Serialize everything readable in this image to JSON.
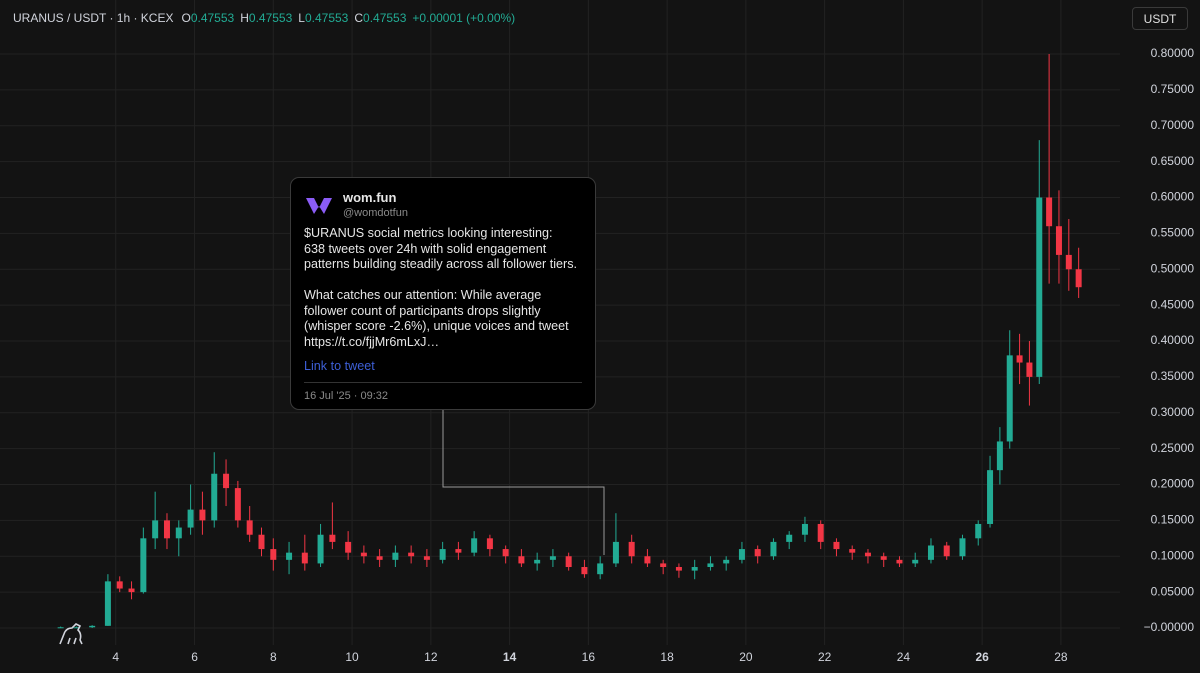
{
  "header": {
    "symbol": "URANUS / USDT · 1h · KCEX",
    "ohlc": [
      {
        "label": "O",
        "value": "0.47553"
      },
      {
        "label": "H",
        "value": "0.47553"
      },
      {
        "label": "L",
        "value": "0.47553"
      },
      {
        "label": "C",
        "value": "0.47553"
      }
    ],
    "change": "+0.00001 (+0.00%)",
    "currency": "USDT"
  },
  "tweet": {
    "name": "wom.fun",
    "handle": "@womdotfun",
    "paragraphs": [
      [
        "$URANUS social metrics looking interesting:",
        "638 tweets over 24h with solid engagement",
        "patterns building steadily across all follower tiers."
      ],
      [
        "What catches our attention: While average",
        "follower count of participants drops slightly",
        "(whisper score -2.6%), unique voices and tweet",
        "https://t.co/fjjMr6mLxJ…"
      ]
    ],
    "link": "Link to tweet",
    "date": "16 Jul '25 · 09:32"
  },
  "chart_data": {
    "type": "candlestick",
    "up_color": "#22ab94",
    "down_color": "#f23645",
    "grid": true,
    "xlim": [
      1.06,
      29.5
    ],
    "xticks": [
      4,
      6,
      8,
      10,
      12,
      14,
      16,
      18,
      20,
      22,
      24,
      26,
      28
    ],
    "ylim": [
      -0.0237,
      0.8753
    ],
    "yticks": [
      {
        "value": 0,
        "label": "−0.00000"
      },
      {
        "value": 0.05,
        "label": "0.05000"
      },
      {
        "value": 0.1,
        "label": "0.10000"
      },
      {
        "value": 0.15,
        "label": "0.15000"
      },
      {
        "value": 0.2,
        "label": "0.20000"
      },
      {
        "value": 0.25,
        "label": "0.25000"
      },
      {
        "value": 0.3,
        "label": "0.30000"
      },
      {
        "value": 0.35,
        "label": "0.35000"
      },
      {
        "value": 0.4,
        "label": "0.40000"
      },
      {
        "value": 0.45,
        "label": "0.45000"
      },
      {
        "value": 0.5,
        "label": "0.50000"
      },
      {
        "value": 0.55,
        "label": "0.55000"
      },
      {
        "value": 0.6,
        "label": "0.60000"
      },
      {
        "value": 0.65,
        "label": "0.65000"
      },
      {
        "value": 0.7,
        "label": "0.70000"
      },
      {
        "value": 0.75,
        "label": "0.75000"
      },
      {
        "value": 0.8,
        "label": "0.80000"
      }
    ],
    "candles": [
      {
        "x": 2.6,
        "open": 0.001,
        "high": 0.002,
        "low": 0.0,
        "close": 0.001
      },
      {
        "x": 3.0,
        "open": 0.001,
        "high": 0.002,
        "low": 0.0,
        "close": 0.001
      },
      {
        "x": 3.4,
        "open": 0.001,
        "high": 0.004,
        "low": 0.0,
        "close": 0.003
      },
      {
        "x": 3.8,
        "open": 0.003,
        "high": 0.075,
        "low": 0.003,
        "close": 0.065
      },
      {
        "x": 4.1,
        "open": 0.065,
        "high": 0.072,
        "low": 0.05,
        "close": 0.055
      },
      {
        "x": 4.4,
        "open": 0.055,
        "high": 0.065,
        "low": 0.04,
        "close": 0.05
      },
      {
        "x": 4.7,
        "open": 0.05,
        "high": 0.14,
        "low": 0.048,
        "close": 0.125
      },
      {
        "x": 5.0,
        "open": 0.125,
        "high": 0.19,
        "low": 0.11,
        "close": 0.15
      },
      {
        "x": 5.3,
        "open": 0.15,
        "high": 0.16,
        "low": 0.11,
        "close": 0.125
      },
      {
        "x": 5.6,
        "open": 0.125,
        "high": 0.15,
        "low": 0.1,
        "close": 0.14
      },
      {
        "x": 5.9,
        "open": 0.14,
        "high": 0.2,
        "low": 0.13,
        "close": 0.165
      },
      {
        "x": 6.2,
        "open": 0.165,
        "high": 0.19,
        "low": 0.13,
        "close": 0.15
      },
      {
        "x": 6.5,
        "open": 0.15,
        "high": 0.245,
        "low": 0.14,
        "close": 0.215
      },
      {
        "x": 6.8,
        "open": 0.215,
        "high": 0.235,
        "low": 0.17,
        "close": 0.195
      },
      {
        "x": 7.1,
        "open": 0.195,
        "high": 0.205,
        "low": 0.14,
        "close": 0.15
      },
      {
        "x": 7.4,
        "open": 0.15,
        "high": 0.17,
        "low": 0.12,
        "close": 0.13
      },
      {
        "x": 7.7,
        "open": 0.13,
        "high": 0.14,
        "low": 0.1,
        "close": 0.11
      },
      {
        "x": 8.0,
        "open": 0.11,
        "high": 0.125,
        "low": 0.08,
        "close": 0.095
      },
      {
        "x": 8.4,
        "open": 0.095,
        "high": 0.12,
        "low": 0.075,
        "close": 0.105
      },
      {
        "x": 8.8,
        "open": 0.105,
        "high": 0.13,
        "low": 0.08,
        "close": 0.09
      },
      {
        "x": 9.2,
        "open": 0.09,
        "high": 0.145,
        "low": 0.085,
        "close": 0.13
      },
      {
        "x": 9.5,
        "open": 0.13,
        "high": 0.175,
        "low": 0.11,
        "close": 0.12
      },
      {
        "x": 9.9,
        "open": 0.12,
        "high": 0.135,
        "low": 0.095,
        "close": 0.105
      },
      {
        "x": 10.3,
        "open": 0.105,
        "high": 0.115,
        "low": 0.09,
        "close": 0.1
      },
      {
        "x": 10.7,
        "open": 0.1,
        "high": 0.11,
        "low": 0.085,
        "close": 0.095
      },
      {
        "x": 11.1,
        "open": 0.095,
        "high": 0.115,
        "low": 0.085,
        "close": 0.105
      },
      {
        "x": 11.5,
        "open": 0.105,
        "high": 0.115,
        "low": 0.09,
        "close": 0.1
      },
      {
        "x": 11.9,
        "open": 0.1,
        "high": 0.11,
        "low": 0.085,
        "close": 0.095
      },
      {
        "x": 12.3,
        "open": 0.095,
        "high": 0.12,
        "low": 0.09,
        "close": 0.11
      },
      {
        "x": 12.7,
        "open": 0.11,
        "high": 0.12,
        "low": 0.095,
        "close": 0.105
      },
      {
        "x": 13.1,
        "open": 0.105,
        "high": 0.135,
        "low": 0.1,
        "close": 0.125
      },
      {
        "x": 13.5,
        "open": 0.125,
        "high": 0.13,
        "low": 0.1,
        "close": 0.11
      },
      {
        "x": 13.9,
        "open": 0.11,
        "high": 0.115,
        "low": 0.09,
        "close": 0.1
      },
      {
        "x": 14.3,
        "open": 0.1,
        "high": 0.11,
        "low": 0.085,
        "close": 0.09
      },
      {
        "x": 14.7,
        "open": 0.09,
        "high": 0.105,
        "low": 0.08,
        "close": 0.095
      },
      {
        "x": 15.1,
        "open": 0.095,
        "high": 0.11,
        "low": 0.085,
        "close": 0.1
      },
      {
        "x": 15.5,
        "open": 0.1,
        "high": 0.105,
        "low": 0.08,
        "close": 0.085
      },
      {
        "x": 15.9,
        "open": 0.085,
        "high": 0.095,
        "low": 0.07,
        "close": 0.075
      },
      {
        "x": 16.3,
        "open": 0.075,
        "high": 0.1,
        "low": 0.068,
        "close": 0.09
      },
      {
        "x": 16.7,
        "open": 0.09,
        "high": 0.16,
        "low": 0.085,
        "close": 0.12
      },
      {
        "x": 17.1,
        "open": 0.12,
        "high": 0.13,
        "low": 0.09,
        "close": 0.1
      },
      {
        "x": 17.5,
        "open": 0.1,
        "high": 0.11,
        "low": 0.085,
        "close": 0.09
      },
      {
        "x": 17.9,
        "open": 0.09,
        "high": 0.095,
        "low": 0.075,
        "close": 0.085
      },
      {
        "x": 18.3,
        "open": 0.085,
        "high": 0.09,
        "low": 0.07,
        "close": 0.08
      },
      {
        "x": 18.7,
        "open": 0.08,
        "high": 0.095,
        "low": 0.068,
        "close": 0.085
      },
      {
        "x": 19.1,
        "open": 0.085,
        "high": 0.1,
        "low": 0.08,
        "close": 0.09
      },
      {
        "x": 19.5,
        "open": 0.09,
        "high": 0.1,
        "low": 0.08,
        "close": 0.095
      },
      {
        "x": 19.9,
        "open": 0.095,
        "high": 0.12,
        "low": 0.09,
        "close": 0.11
      },
      {
        "x": 20.3,
        "open": 0.11,
        "high": 0.115,
        "low": 0.09,
        "close": 0.1
      },
      {
        "x": 20.7,
        "open": 0.1,
        "high": 0.125,
        "low": 0.095,
        "close": 0.12
      },
      {
        "x": 21.1,
        "open": 0.12,
        "high": 0.135,
        "low": 0.11,
        "close": 0.13
      },
      {
        "x": 21.5,
        "open": 0.13,
        "high": 0.155,
        "low": 0.12,
        "close": 0.145
      },
      {
        "x": 21.9,
        "open": 0.145,
        "high": 0.15,
        "low": 0.11,
        "close": 0.12
      },
      {
        "x": 22.3,
        "open": 0.12,
        "high": 0.125,
        "low": 0.1,
        "close": 0.11
      },
      {
        "x": 22.7,
        "open": 0.11,
        "high": 0.115,
        "low": 0.095,
        "close": 0.105
      },
      {
        "x": 23.1,
        "open": 0.105,
        "high": 0.11,
        "low": 0.09,
        "close": 0.1
      },
      {
        "x": 23.5,
        "open": 0.1,
        "high": 0.105,
        "low": 0.085,
        "close": 0.095
      },
      {
        "x": 23.9,
        "open": 0.095,
        "high": 0.1,
        "low": 0.085,
        "close": 0.09
      },
      {
        "x": 24.3,
        "open": 0.09,
        "high": 0.105,
        "low": 0.085,
        "close": 0.095
      },
      {
        "x": 24.7,
        "open": 0.095,
        "high": 0.125,
        "low": 0.09,
        "close": 0.115
      },
      {
        "x": 25.1,
        "open": 0.115,
        "high": 0.12,
        "low": 0.095,
        "close": 0.1
      },
      {
        "x": 25.5,
        "open": 0.1,
        "high": 0.13,
        "low": 0.095,
        "close": 0.125
      },
      {
        "x": 25.9,
        "open": 0.125,
        "high": 0.15,
        "low": 0.115,
        "close": 0.145
      },
      {
        "x": 26.2,
        "open": 0.145,
        "high": 0.24,
        "low": 0.14,
        "close": 0.22
      },
      {
        "x": 26.45,
        "open": 0.22,
        "high": 0.28,
        "low": 0.2,
        "close": 0.26
      },
      {
        "x": 26.7,
        "open": 0.26,
        "high": 0.415,
        "low": 0.25,
        "close": 0.38
      },
      {
        "x": 26.95,
        "open": 0.38,
        "high": 0.41,
        "low": 0.34,
        "close": 0.37
      },
      {
        "x": 27.2,
        "open": 0.37,
        "high": 0.4,
        "low": 0.31,
        "close": 0.35
      },
      {
        "x": 27.45,
        "open": 0.35,
        "high": 0.68,
        "low": 0.34,
        "close": 0.6
      },
      {
        "x": 27.7,
        "open": 0.6,
        "high": 0.8,
        "low": 0.48,
        "close": 0.56
      },
      {
        "x": 27.95,
        "open": 0.56,
        "high": 0.61,
        "low": 0.48,
        "close": 0.52
      },
      {
        "x": 28.2,
        "open": 0.52,
        "high": 0.57,
        "low": 0.47,
        "close": 0.5
      },
      {
        "x": 28.45,
        "open": 0.5,
        "high": 0.53,
        "low": 0.46,
        "close": 0.475
      }
    ]
  }
}
